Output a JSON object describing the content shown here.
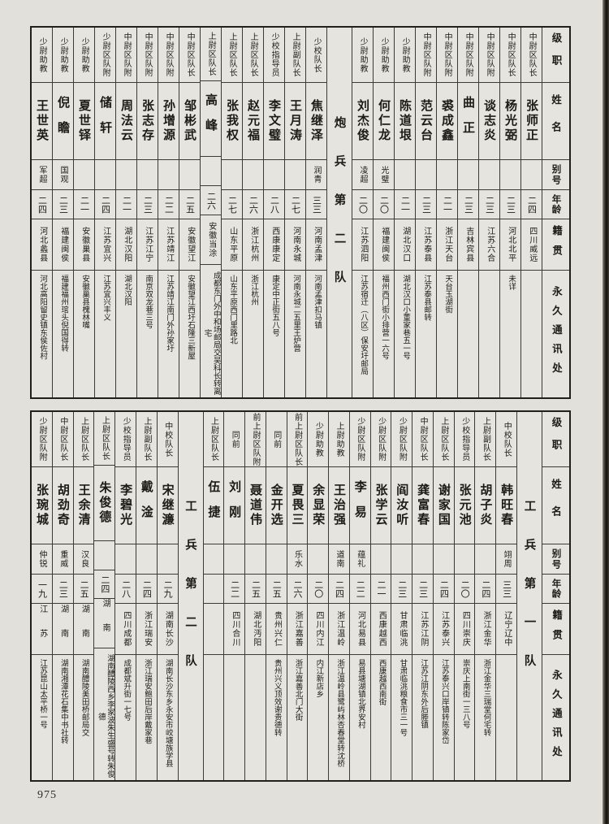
{
  "page": {
    "number": "975"
  },
  "headers": [
    "级职",
    "姓名",
    "别号",
    "年龄",
    "籍贯",
    "永久通讯处"
  ],
  "tables": [
    {
      "columns": [
        {
          "rank": "中尉区队长",
          "name": "张师正",
          "alias": "",
          "age": "二四",
          "native": "四川威远",
          "address": ""
        },
        {
          "rank": "中尉区队长",
          "name": "杨光弼",
          "alias": "",
          "age": "二三",
          "native": "河北北平",
          "address": "未详"
        },
        {
          "rank": "中尉区队附",
          "name": "谈志炎",
          "alias": "",
          "age": "二三",
          "native": "江苏六合",
          "address": ""
        },
        {
          "rank": "中尉区队附",
          "name": "曲正",
          "alias": "",
          "age": "二三",
          "native": "吉林宾县",
          "address": ""
        },
        {
          "rank": "中尉区队附",
          "name": "裘成鑫",
          "alias": "",
          "age": "二一",
          "native": "浙江天台",
          "address": "天台玉湖街"
        },
        {
          "rank": "中尉区队附",
          "name": "范云台",
          "alias": "",
          "age": "二三",
          "native": "江苏泰县",
          "address": "江苏泰县邮转"
        },
        {
          "rank": "少尉助教",
          "name": "陈道垠",
          "alias": "",
          "age": "二一",
          "native": "湖北汉口",
          "address": "湖北汉口小董家巷五一号"
        },
        {
          "rank": "少尉助教",
          "name": "何仁龙",
          "alias": "光璧",
          "age": "二〇",
          "native": "福建闽侯",
          "address": "福州西门街小排营一六号"
        },
        {
          "rank": "少尉助教",
          "name": "刘杰俊",
          "alias": "凌超",
          "age": "二〇",
          "native": "江苏泗阳",
          "address": "江苏宿迁（八区）保安圩邮局"
        },
        {
          "section": "炮兵第二队"
        },
        {
          "rank": "少校队长",
          "name": "焦继泽",
          "alias": "润青",
          "age": "三三",
          "native": "河南孟津",
          "address": "河南孟津扣马镇"
        },
        {
          "rank": "上尉副队长",
          "name": "王月涛",
          "alias": "",
          "age": "二七",
          "native": "河南永城",
          "address": "河南永城二五里王炉营"
        },
        {
          "rank": "少校指导员",
          "name": "李文璧",
          "alias": "",
          "age": "二八",
          "native": "西康康定",
          "address": "康定中正街五八号"
        },
        {
          "rank": "上尉区队长",
          "name": "赵元福",
          "alias": "",
          "age": "二六",
          "native": "浙江杭州",
          "address": "浙江杭州"
        },
        {
          "rank": "上尉区队长",
          "name": "张我权",
          "alias": "",
          "age": "二七",
          "native": "山东平原",
          "address": "山东平原西门里路北"
        },
        {
          "rank": "上尉区队长",
          "name": "高峰",
          "alias": "",
          "age": "二六",
          "native": "安徽当涂",
          "address": "成都东门外中和场邮局交吴科长转离宅"
        },
        {
          "rank": "中尉区队长",
          "name": "邹彬武",
          "alias": "",
          "age": "二五",
          "native": "安徽望江",
          "address": "安徽望江西圩石隆三新屋"
        },
        {
          "rank": "中尉区队附",
          "name": "孙增源",
          "alias": "",
          "age": "二二",
          "native": "江苏靖江",
          "address": "江苏靖江南门外孙家圩"
        },
        {
          "rank": "中尉区队附",
          "name": "张志存",
          "alias": "",
          "age": "二三",
          "native": "江苏江宁",
          "address": "南京双龙巷三号"
        },
        {
          "rank": "中尉区队附",
          "name": "周法云",
          "alias": "",
          "age": "二一",
          "native": "湖北汉阳",
          "address": "湖北汉阳"
        },
        {
          "rank": "少尉区队附",
          "name": "储轩",
          "alias": "",
          "age": "二四",
          "native": "江苏宜兴",
          "address": "江苏宜兴丰义"
        },
        {
          "rank": "少尉助教",
          "name": "夏世铎",
          "alias": "",
          "age": "二一",
          "native": "安徽巢县",
          "address": "安徽巢县槐林嘴"
        },
        {
          "rank": "少尉助教",
          "name": "倪瞻",
          "alias": "国观",
          "age": "二三",
          "native": "福建闽侯",
          "address": "福建福州琯头倪国得转"
        },
        {
          "rank": "少尉助教",
          "name": "王世英",
          "alias": "军超",
          "age": "二四",
          "native": "河北蠡县",
          "address": "河北高阳留史镇东侯佐村"
        }
      ]
    },
    {
      "columns": [
        {
          "section": "工兵第一队"
        },
        {
          "rank": "中校队长",
          "name": "韩旺春",
          "alias": "翊周",
          "age": "三三",
          "native": "辽宁辽中",
          "address": ""
        },
        {
          "rank": "上尉副队长",
          "name": "胡子炎",
          "alias": "",
          "age": "二四",
          "native": "浙江金华",
          "address": "浙江金华三瑞堂何宅转"
        },
        {
          "rank": "少校指导员",
          "name": "张元池",
          "alias": "",
          "age": "二〇",
          "native": "四川崇庆",
          "address": "崇庆上南街一三八号"
        },
        {
          "rank": "上尉区队长",
          "name": "谢家国",
          "alias": "",
          "age": "二四",
          "native": "江苏泰兴",
          "address": "江苏泰兴口岸镇转陈家岱"
        },
        {
          "rank": "中尉区队长",
          "name": "龚富春",
          "alias": "",
          "age": "二三",
          "native": "江苏江阴",
          "address": "江苏江阴东外后塍镇"
        },
        {
          "rank": "少尉区队附",
          "name": "阎汝听",
          "alias": "",
          "age": "二三",
          "native": "甘肃临洮",
          "address": "甘肃临洮粮食市三一号"
        },
        {
          "rank": "少尉区队附",
          "name": "张学云",
          "alias": "",
          "age": "二一",
          "native": "西康越西",
          "address": "西康越西南街"
        },
        {
          "rank": "少尉区队附",
          "name": "李易",
          "alias": "蕴礼",
          "age": "二二",
          "native": "河北易县",
          "address": "易县塘湖镇北界安村"
        },
        {
          "rank": "上尉助教",
          "name": "王治强",
          "alias": "道南",
          "age": "二四",
          "native": "浙江温岭",
          "address": "浙江温岭县鹭屿林杏春堂转沈桥"
        },
        {
          "rank": "少尉助教",
          "name": "余显荣",
          "alias": "",
          "age": "二〇",
          "native": "四川内江",
          "address": "内江新店乡"
        },
        {
          "rank": "前上尉区队长",
          "name": "夏畏三",
          "alias": "乐水",
          "age": "二六",
          "native": "浙江嘉善",
          "address": "浙江嘉善北门大街"
        },
        {
          "rank": "同前",
          "name": "金开选",
          "alias": "",
          "age": "二五",
          "native": "贵州兴仁",
          "address": "贵州兴义顶效谢贵德转"
        },
        {
          "rank": "前上尉区队附",
          "name": "聂道伟",
          "alias": "",
          "age": "二五",
          "native": "湖北沔阳",
          "address": ""
        },
        {
          "rank": "同前",
          "name": "刘刚",
          "alias": "",
          "age": "二二",
          "native": "四川合川",
          "address": ""
        },
        {
          "rank": "上尉区队长",
          "name": "伍捷",
          "alias": "",
          "age": "",
          "native": "",
          "address": ""
        },
        {
          "section": "工兵第二队"
        },
        {
          "rank": "中校队长",
          "name": "宋继濂",
          "alias": "",
          "age": "二九",
          "native": "湖南长沙",
          "address": "湖南长沙东乡永安市峧塘族学县"
        },
        {
          "rank": "上尉副队长",
          "name": "戴淦",
          "alias": "",
          "age": "二四",
          "native": "浙江瑞安",
          "address": "浙江瑞安鲍田后岸戴家巷"
        },
        {
          "rank": "少校指导员",
          "name": "李碧光",
          "alias": "",
          "age": "二八",
          "native": "四川成都",
          "address": "成都斌升街一七号"
        },
        {
          "rank": "上尉区队长",
          "name": "朱俊德",
          "alias": "",
          "age": "二四",
          "native": "湖南",
          "address": "湖南醴陵西乡李家波朱生盛号转朱俊德"
        },
        {
          "rank": "上尉区队长",
          "name": "王余清",
          "alias": "汉良",
          "age": "二五",
          "native": "湖南",
          "address": "湖南醴陵美田桥邮局交"
        },
        {
          "rank": "中尉区队长",
          "name": "胡劲奇",
          "alias": "重威",
          "age": "二三",
          "native": "湖南",
          "address": "湖南湘潭花石集中书社转"
        },
        {
          "rank": "少尉区队附",
          "name": "张琬城",
          "alias": "仲锐",
          "age": "一九",
          "native": "江苏",
          "address": "江苏昆山太平桥一号"
        }
      ]
    }
  ]
}
